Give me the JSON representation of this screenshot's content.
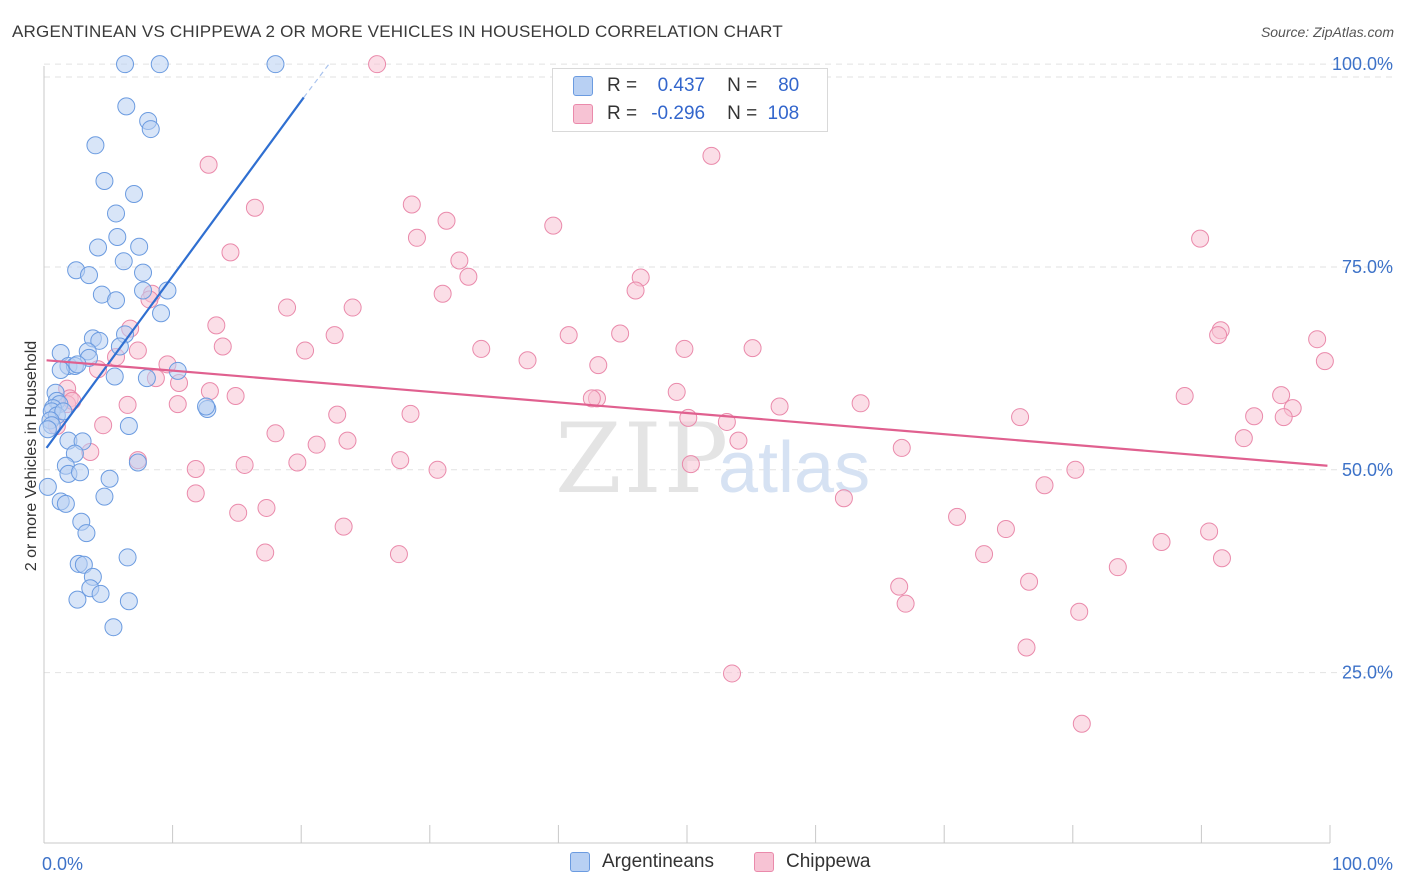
{
  "title": "ARGENTINEAN VS CHIPPEWA 2 OR MORE VEHICLES IN HOUSEHOLD CORRELATION CHART",
  "source": "Source: ZipAtlas.com",
  "watermark": {
    "zip": "ZIP",
    "atlas": "atlas"
  },
  "legend": {
    "rows": [
      {
        "r_label": "R =",
        "r_value": "0.437",
        "n_label": "N =",
        "n_value": "80"
      },
      {
        "r_label": "R =",
        "r_value": "-0.296",
        "n_label": "N =",
        "n_value": "108"
      }
    ]
  },
  "bottom_legend": {
    "series1": "Argentineans",
    "series2": "Chippewa"
  },
  "colors": {
    "blue_fill": "#b8d0f3",
    "blue_stroke": "#6b9be0",
    "blue_line": "#2f6fd1",
    "pink_fill": "#f7c3d4",
    "pink_stroke": "#ea8aab",
    "pink_line": "#e0608f",
    "tick_label": "#3d72c8",
    "grid": "#e2e2e2"
  },
  "chart_data": {
    "type": "scatter",
    "title": "ARGENTINEAN VS CHIPPEWA 2 OR MORE VEHICLES IN HOUSEHOLD CORRELATION CHART",
    "xlabel": "",
    "ylabel": "2 or more Vehicles in Household",
    "xlim": [
      0,
      100
    ],
    "ylim": [
      4,
      101.5
    ],
    "x_tick_labels": [
      "0.0%",
      "100.0%"
    ],
    "y_ticks": [
      25,
      50,
      75,
      100
    ],
    "y_tick_labels": [
      "25.0%",
      "50.0%",
      "75.0%",
      "100.0%"
    ],
    "series": [
      {
        "name": "Argentineans",
        "color": "blue",
        "R": 0.437,
        "N": 80,
        "trend": {
          "x": [
            0.2,
            20.2
          ],
          "y": [
            52.7,
            95.9
          ],
          "dashed_to": {
            "x": 22.2,
            "y": 100.1
          }
        },
        "points": [
          [
            6.3,
            100
          ],
          [
            9.0,
            100
          ],
          [
            18.0,
            100
          ],
          [
            6.4,
            94.8
          ],
          [
            8.1,
            93
          ],
          [
            8.3,
            92
          ],
          [
            4.0,
            90
          ],
          [
            4.7,
            85.6
          ],
          [
            7.0,
            84
          ],
          [
            5.6,
            81.6
          ],
          [
            5.7,
            78.7
          ],
          [
            4.2,
            77.4
          ],
          [
            7.4,
            77.5
          ],
          [
            6.2,
            75.7
          ],
          [
            2.5,
            74.6
          ],
          [
            3.5,
            74
          ],
          [
            7.7,
            74.3
          ],
          [
            4.5,
            71.6
          ],
          [
            9.6,
            72.1
          ],
          [
            5.6,
            70.9
          ],
          [
            7.7,
            72.1
          ],
          [
            9.1,
            69.3
          ],
          [
            3.8,
            66.2
          ],
          [
            6.3,
            66.7
          ],
          [
            4.3,
            65.9
          ],
          [
            1.3,
            64.4
          ],
          [
            3.4,
            64.6
          ],
          [
            5.9,
            65.2
          ],
          [
            3.5,
            63.8
          ],
          [
            1.9,
            62.8
          ],
          [
            2.4,
            62.8
          ],
          [
            2.6,
            63.0
          ],
          [
            1.3,
            62.3
          ],
          [
            10.4,
            62.2
          ],
          [
            5.5,
            61.5
          ],
          [
            8.0,
            61.3
          ],
          [
            0.9,
            59.5
          ],
          [
            1.0,
            58.5
          ],
          [
            1.2,
            58.1
          ],
          [
            0.7,
            57.6
          ],
          [
            0.6,
            57.2
          ],
          [
            1.0,
            56.7
          ],
          [
            1.5,
            57.2
          ],
          [
            0.5,
            56.1
          ],
          [
            0.6,
            55.5
          ],
          [
            0.3,
            55.0
          ],
          [
            12.7,
            57.5
          ],
          [
            12.6,
            57.8
          ],
          [
            6.6,
            55.4
          ],
          [
            1.9,
            53.6
          ],
          [
            3.0,
            53.5
          ],
          [
            7.3,
            50.9
          ],
          [
            2.4,
            52.0
          ],
          [
            1.7,
            50.5
          ],
          [
            1.9,
            49.5
          ],
          [
            2.8,
            49.7
          ],
          [
            5.1,
            48.9
          ],
          [
            0.3,
            47.9
          ],
          [
            1.3,
            46.1
          ],
          [
            1.7,
            45.8
          ],
          [
            4.7,
            46.7
          ],
          [
            2.9,
            43.6
          ],
          [
            3.3,
            42.2
          ],
          [
            6.5,
            39.2
          ],
          [
            2.7,
            38.4
          ],
          [
            3.1,
            38.3
          ],
          [
            3.8,
            36.8
          ],
          [
            3.6,
            35.4
          ],
          [
            4.4,
            34.7
          ],
          [
            2.6,
            34.0
          ],
          [
            6.6,
            33.8
          ],
          [
            5.4,
            30.6
          ]
        ]
      },
      {
        "name": "Chippewa",
        "color": "pink",
        "R": -0.296,
        "N": 108,
        "trend": {
          "x": [
            0.2,
            99.8
          ],
          "y": [
            63.5,
            50.5
          ]
        },
        "points": [
          [
            25.9,
            100
          ],
          [
            12.8,
            87.6
          ],
          [
            51.9,
            88.7
          ],
          [
            16.4,
            82.3
          ],
          [
            28.6,
            82.7
          ],
          [
            31.3,
            80.7
          ],
          [
            39.6,
            80.1
          ],
          [
            29.0,
            78.6
          ],
          [
            14.5,
            76.8
          ],
          [
            32.3,
            75.8
          ],
          [
            89.9,
            78.5
          ],
          [
            33.0,
            73.8
          ],
          [
            46.4,
            73.7
          ],
          [
            8.4,
            71.7
          ],
          [
            31.0,
            71.7
          ],
          [
            46.0,
            72.1
          ],
          [
            18.9,
            70.0
          ],
          [
            24.0,
            70.0
          ],
          [
            8.2,
            71.0
          ],
          [
            13.4,
            67.8
          ],
          [
            6.7,
            67.4
          ],
          [
            22.6,
            66.6
          ],
          [
            40.8,
            66.6
          ],
          [
            44.8,
            66.8
          ],
          [
            91.5,
            67.2
          ],
          [
            91.3,
            66.6
          ],
          [
            99.0,
            66.1
          ],
          [
            7.3,
            64.7
          ],
          [
            13.9,
            65.2
          ],
          [
            20.3,
            64.7
          ],
          [
            34.0,
            64.9
          ],
          [
            49.8,
            64.9
          ],
          [
            55.1,
            65.0
          ],
          [
            5.6,
            63.9
          ],
          [
            37.6,
            63.5
          ],
          [
            43.1,
            62.9
          ],
          [
            99.6,
            63.4
          ],
          [
            4.2,
            62.4
          ],
          [
            9.6,
            63.0
          ],
          [
            8.7,
            61.3
          ],
          [
            10.5,
            60.7
          ],
          [
            1.8,
            60.0
          ],
          [
            2.0,
            58.8
          ],
          [
            12.9,
            59.7
          ],
          [
            14.9,
            59.1
          ],
          [
            43.0,
            58.8
          ],
          [
            49.2,
            59.6
          ],
          [
            88.7,
            59.1
          ],
          [
            96.2,
            59.2
          ],
          [
            1.8,
            58.1
          ],
          [
            2.2,
            58.5
          ],
          [
            6.5,
            58.0
          ],
          [
            10.4,
            58.1
          ],
          [
            42.6,
            58.8
          ],
          [
            57.2,
            57.8
          ],
          [
            63.5,
            58.2
          ],
          [
            97.1,
            57.6
          ],
          [
            22.8,
            56.8
          ],
          [
            28.5,
            56.9
          ],
          [
            50.1,
            56.4
          ],
          [
            75.9,
            56.5
          ],
          [
            94.1,
            56.6
          ],
          [
            96.4,
            56.5
          ],
          [
            1.0,
            55.4
          ],
          [
            4.6,
            55.5
          ],
          [
            18.0,
            54.5
          ],
          [
            53.1,
            55.9
          ],
          [
            21.2,
            53.1
          ],
          [
            23.6,
            53.6
          ],
          [
            54.0,
            53.6
          ],
          [
            93.3,
            53.9
          ],
          [
            7.3,
            51.2
          ],
          [
            3.6,
            52.2
          ],
          [
            27.7,
            51.2
          ],
          [
            11.8,
            50.1
          ],
          [
            15.6,
            50.6
          ],
          [
            19.7,
            50.9
          ],
          [
            30.6,
            50.0
          ],
          [
            50.3,
            50.7
          ],
          [
            66.7,
            52.7
          ],
          [
            80.2,
            50.0
          ],
          [
            11.8,
            47.1
          ],
          [
            17.3,
            45.3
          ],
          [
            62.2,
            46.5
          ],
          [
            15.1,
            44.7
          ],
          [
            77.8,
            48.1
          ],
          [
            71.0,
            44.2
          ],
          [
            23.3,
            43.0
          ],
          [
            74.8,
            42.7
          ],
          [
            86.9,
            41.1
          ],
          [
            90.6,
            42.4
          ],
          [
            17.2,
            39.8
          ],
          [
            27.6,
            39.6
          ],
          [
            73.1,
            39.6
          ],
          [
            91.6,
            39.1
          ],
          [
            83.5,
            38.0
          ],
          [
            66.5,
            35.6
          ],
          [
            76.6,
            36.2
          ],
          [
            67.0,
            33.5
          ],
          [
            80.5,
            32.5
          ],
          [
            76.4,
            28.1
          ],
          [
            53.5,
            24.9
          ],
          [
            80.7,
            18.7
          ]
        ]
      }
    ]
  }
}
